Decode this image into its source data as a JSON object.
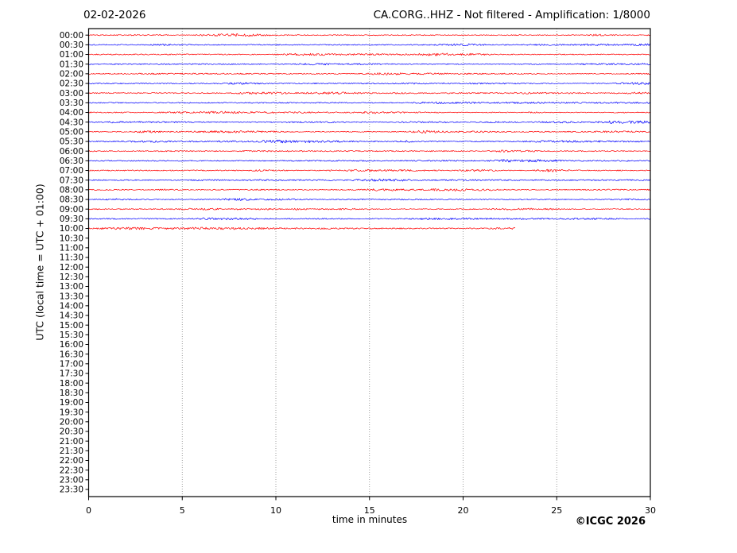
{
  "figure": {
    "title_left": "02-02-2026",
    "title_right": "CA.CORG..HHZ - Not filtered - Amplification: 1/8000",
    "copyright": "©ICGC 2026"
  },
  "chart_data": {
    "type": "line",
    "subtype": "seismogram-helicorder-dayplot",
    "xlabel": "time in minutes",
    "ylabel": "UTC (local time = UTC + 01:00)",
    "xlim": [
      0,
      30
    ],
    "x_ticks": [
      0,
      5,
      10,
      15,
      20,
      25,
      30
    ],
    "grid": "vertical dotted lines at 5-minute intervals",
    "legend_position": "none",
    "y_labels": [
      "00:00",
      "00:30",
      "01:00",
      "01:30",
      "02:00",
      "02:30",
      "03:00",
      "03:30",
      "04:00",
      "04:30",
      "05:00",
      "05:30",
      "06:00",
      "06:30",
      "07:00",
      "07:30",
      "08:00",
      "08:30",
      "09:00",
      "09:30",
      "10:00",
      "10:30",
      "11:00",
      "11:30",
      "12:00",
      "12:30",
      "13:00",
      "13:30",
      "14:00",
      "14:30",
      "15:00",
      "15:30",
      "16:00",
      "16:30",
      "17:00",
      "17:30",
      "18:00",
      "18:30",
      "19:00",
      "19:30",
      "20:00",
      "20:30",
      "21:00",
      "21:30",
      "22:00",
      "22:30",
      "23:00",
      "23:30"
    ],
    "colors": {
      "trace_hour": "#ff0000",
      "trace_half_hour": "#0000ff",
      "grid": "#888888",
      "axis": "#000000",
      "background": "#ffffff"
    },
    "traces": [
      {
        "time": "00:00",
        "color": "red",
        "minutes_of_data": 30
      },
      {
        "time": "00:30",
        "color": "blue",
        "minutes_of_data": 30
      },
      {
        "time": "01:00",
        "color": "red",
        "minutes_of_data": 30
      },
      {
        "time": "01:30",
        "color": "blue",
        "minutes_of_data": 30
      },
      {
        "time": "02:00",
        "color": "red",
        "minutes_of_data": 30
      },
      {
        "time": "02:30",
        "color": "blue",
        "minutes_of_data": 30
      },
      {
        "time": "03:00",
        "color": "red",
        "minutes_of_data": 30
      },
      {
        "time": "03:30",
        "color": "blue",
        "minutes_of_data": 30
      },
      {
        "time": "04:00",
        "color": "red",
        "minutes_of_data": 30
      },
      {
        "time": "04:30",
        "color": "blue",
        "minutes_of_data": 30
      },
      {
        "time": "05:00",
        "color": "red",
        "minutes_of_data": 30
      },
      {
        "time": "05:30",
        "color": "blue",
        "minutes_of_data": 30
      },
      {
        "time": "06:00",
        "color": "red",
        "minutes_of_data": 30
      },
      {
        "time": "06:30",
        "color": "blue",
        "minutes_of_data": 30
      },
      {
        "time": "07:00",
        "color": "red",
        "minutes_of_data": 30
      },
      {
        "time": "07:30",
        "color": "blue",
        "minutes_of_data": 30
      },
      {
        "time": "08:00",
        "color": "red",
        "minutes_of_data": 30
      },
      {
        "time": "08:30",
        "color": "blue",
        "minutes_of_data": 30
      },
      {
        "time": "09:00",
        "color": "red",
        "minutes_of_data": 30
      },
      {
        "time": "09:30",
        "color": "blue",
        "minutes_of_data": 30
      },
      {
        "time": "10:00",
        "color": "red",
        "minutes_of_data": 22.8
      }
    ],
    "notes": "Background noise traces only; recording stops during the 10:00 line, rows 10:30-23:30 are empty."
  }
}
